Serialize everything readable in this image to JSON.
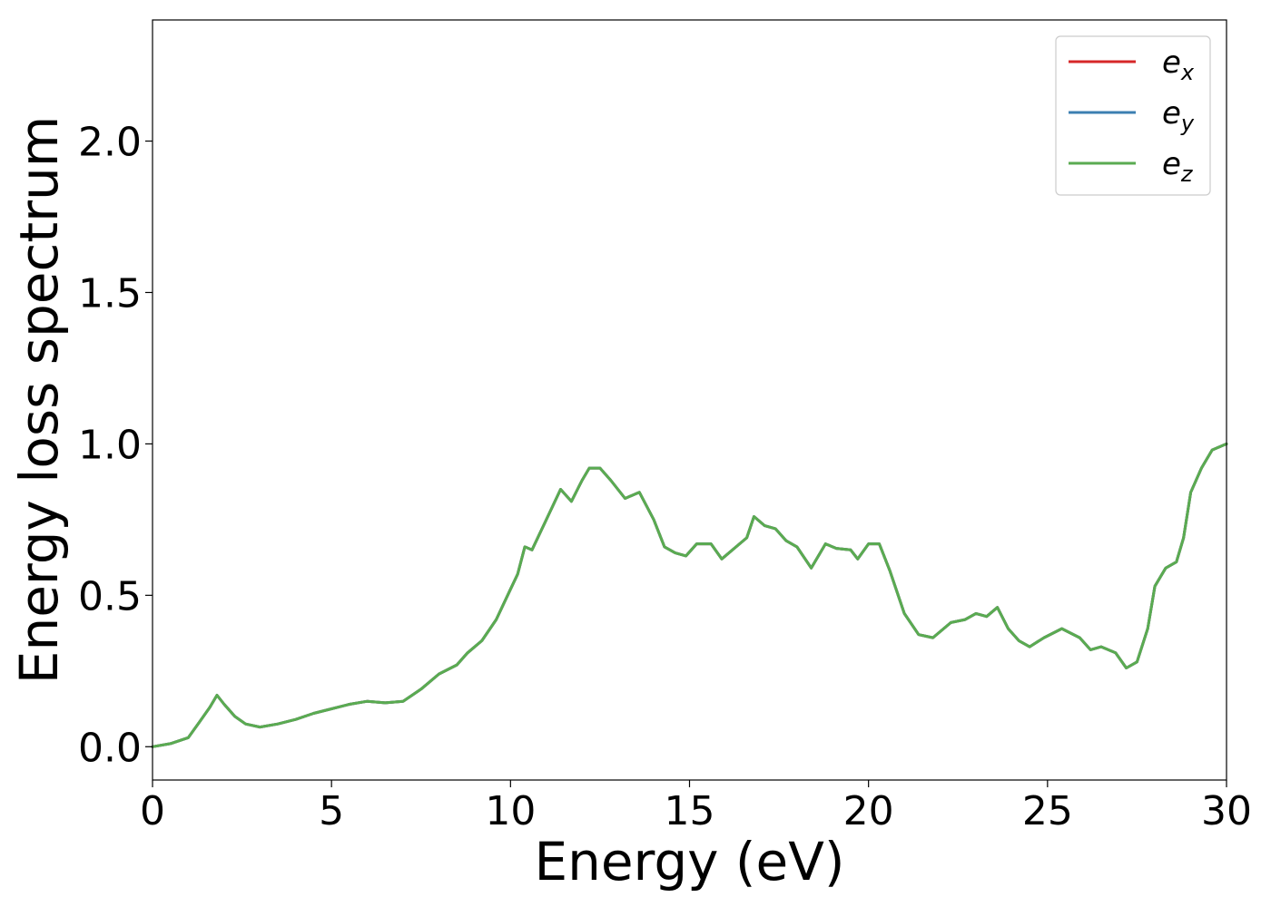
{
  "chart_data": {
    "type": "line",
    "xlabel": "Energy (eV)",
    "ylabel": "Energy loss spectrum",
    "xlim": [
      0,
      30
    ],
    "ylim": [
      -0.11,
      2.4
    ],
    "xticks": [
      0,
      5,
      10,
      15,
      20,
      25,
      30
    ],
    "yticks": [
      0.0,
      0.5,
      1.0,
      1.5,
      2.0
    ],
    "xtick_labels": [
      "0",
      "5",
      "10",
      "15",
      "20",
      "25",
      "30"
    ],
    "ytick_labels": [
      "0.0",
      "0.5",
      "1.0",
      "1.5",
      "2.0"
    ],
    "grid": false,
    "legend_position": "top-right",
    "x": [
      0,
      0.5,
      1.0,
      1.3,
      1.6,
      1.8,
      2.0,
      2.3,
      2.6,
      3.0,
      3.5,
      4.0,
      4.5,
      5.0,
      5.5,
      6.0,
      6.5,
      7.0,
      7.5,
      8.0,
      8.5,
      8.8,
      9.2,
      9.6,
      10.0,
      10.2,
      10.4,
      10.6,
      11.0,
      11.4,
      11.7,
      12.0,
      12.2,
      12.5,
      12.8,
      13.2,
      13.6,
      14.0,
      14.3,
      14.6,
      14.9,
      15.2,
      15.6,
      15.9,
      16.3,
      16.6,
      16.8,
      17.1,
      17.4,
      17.7,
      18.0,
      18.4,
      18.8,
      19.1,
      19.5,
      19.7,
      20.0,
      20.3,
      20.6,
      21.0,
      21.4,
      21.8,
      22.3,
      22.7,
      23.0,
      23.3,
      23.6,
      23.9,
      24.2,
      24.5,
      24.9,
      25.4,
      25.9,
      26.2,
      26.5,
      26.9,
      27.2,
      27.5,
      27.8,
      28.0,
      28.3,
      28.6,
      28.8,
      29.0,
      29.3,
      29.6,
      29.8,
      30.0
    ],
    "series": [
      {
        "name": "e_x",
        "label_base": "e",
        "label_sub": "x",
        "color": "#d62728",
        "values": [
          0,
          0.01,
          0.03,
          0.08,
          0.13,
          0.17,
          0.14,
          0.1,
          0.075,
          0.065,
          0.075,
          0.09,
          0.11,
          0.125,
          0.14,
          0.15,
          0.145,
          0.15,
          0.19,
          0.24,
          0.27,
          0.31,
          0.35,
          0.42,
          0.52,
          0.57,
          0.66,
          0.65,
          0.75,
          0.85,
          0.81,
          0.88,
          0.92,
          0.92,
          0.88,
          0.82,
          0.84,
          0.75,
          0.66,
          0.64,
          0.63,
          0.67,
          0.67,
          0.62,
          0.66,
          0.69,
          0.76,
          0.73,
          0.72,
          0.68,
          0.66,
          0.59,
          0.67,
          0.655,
          0.65,
          0.62,
          0.67,
          0.67,
          0.58,
          0.44,
          0.37,
          0.36,
          0.41,
          0.42,
          0.44,
          0.43,
          0.46,
          0.39,
          0.35,
          0.33,
          0.36,
          0.39,
          0.36,
          0.32,
          0.33,
          0.31,
          0.26,
          0.28,
          0.39,
          0.53,
          0.59,
          0.61,
          0.69,
          0.84,
          0.92,
          0.98,
          0.99,
          1.0
        ]
      },
      {
        "name": "e_y",
        "label_base": "e",
        "label_sub": "y",
        "color": "#3c7fb1",
        "values": [
          0,
          0.01,
          0.03,
          0.08,
          0.13,
          0.17,
          0.14,
          0.1,
          0.075,
          0.065,
          0.075,
          0.09,
          0.11,
          0.125,
          0.14,
          0.15,
          0.145,
          0.15,
          0.19,
          0.24,
          0.27,
          0.31,
          0.35,
          0.42,
          0.52,
          0.57,
          0.66,
          0.65,
          0.75,
          0.85,
          0.81,
          0.88,
          0.92,
          0.92,
          0.88,
          0.82,
          0.84,
          0.75,
          0.66,
          0.64,
          0.63,
          0.67,
          0.67,
          0.62,
          0.66,
          0.69,
          0.76,
          0.73,
          0.72,
          0.68,
          0.66,
          0.59,
          0.67,
          0.655,
          0.65,
          0.62,
          0.67,
          0.67,
          0.58,
          0.44,
          0.37,
          0.36,
          0.41,
          0.42,
          0.44,
          0.43,
          0.46,
          0.39,
          0.35,
          0.33,
          0.36,
          0.39,
          0.36,
          0.32,
          0.33,
          0.31,
          0.26,
          0.28,
          0.39,
          0.53,
          0.59,
          0.61,
          0.69,
          0.84,
          0.92,
          0.98,
          0.99,
          1.0
        ]
      },
      {
        "name": "e_z",
        "label_base": "e",
        "label_sub": "z",
        "color": "#5aab51",
        "values": [
          0,
          0.01,
          0.03,
          0.08,
          0.13,
          0.17,
          0.14,
          0.1,
          0.075,
          0.065,
          0.075,
          0.09,
          0.11,
          0.125,
          0.14,
          0.15,
          0.145,
          0.15,
          0.19,
          0.24,
          0.27,
          0.31,
          0.35,
          0.42,
          0.52,
          0.57,
          0.66,
          0.65,
          0.75,
          0.85,
          0.81,
          0.88,
          0.92,
          0.92,
          0.88,
          0.82,
          0.84,
          0.75,
          0.66,
          0.64,
          0.63,
          0.67,
          0.67,
          0.62,
          0.66,
          0.69,
          0.76,
          0.73,
          0.72,
          0.68,
          0.66,
          0.59,
          0.67,
          0.655,
          0.65,
          0.62,
          0.67,
          0.67,
          0.58,
          0.44,
          0.37,
          0.36,
          0.41,
          0.42,
          0.44,
          0.43,
          0.46,
          0.39,
          0.35,
          0.33,
          0.36,
          0.39,
          0.36,
          0.32,
          0.33,
          0.31,
          0.26,
          0.28,
          0.39,
          0.53,
          0.59,
          0.61,
          0.69,
          0.84,
          0.92,
          0.98,
          0.99,
          1.0
        ]
      }
    ]
  }
}
